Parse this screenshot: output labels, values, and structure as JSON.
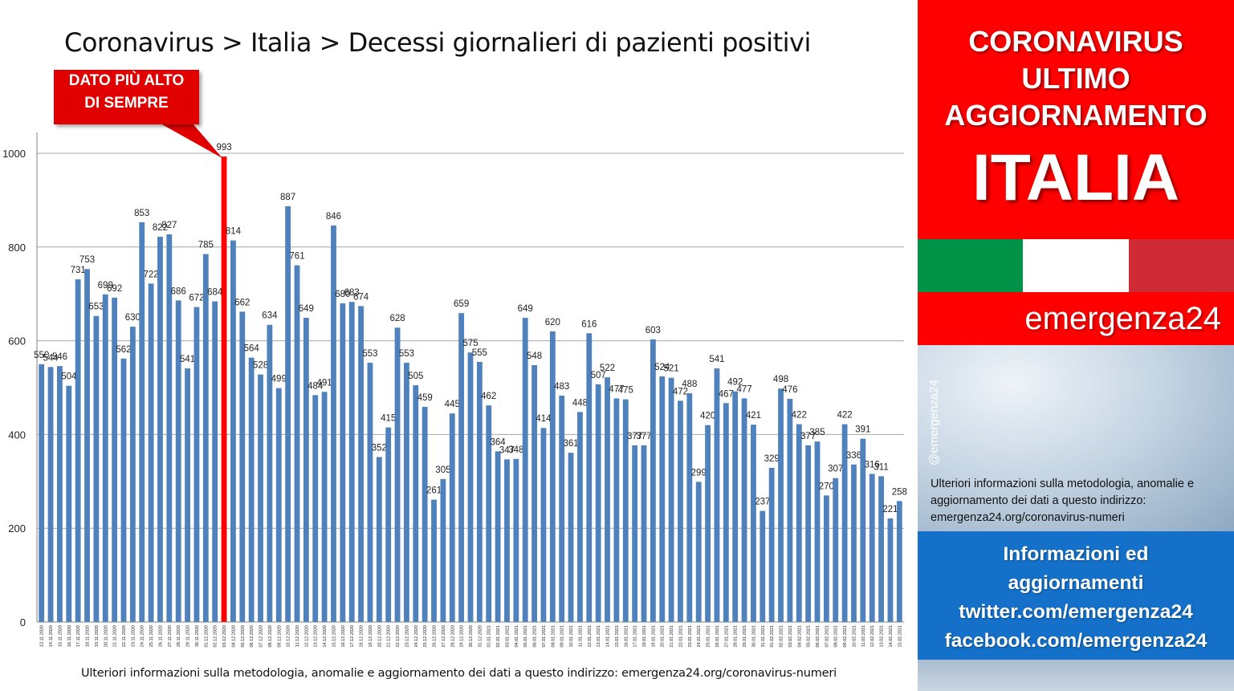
{
  "title": "Coronavirus > Italia > Decessi giornalieri di pazienti positivi",
  "callout": {
    "line1": "DATO PIÙ ALTO",
    "line2": "DI SEMPRE"
  },
  "footnote": "Ulteriori informazioni sulla metodologia, anomalie e aggiornamento dei dati a questo indirizzo: emergenza24.org/coronavirus-numeri",
  "side": {
    "line1": "CORONAVIRUS",
    "line2": "ULTIMO",
    "line3": "AGGIORNAMENTO",
    "big": "ITALIA",
    "brand": "emergenza24",
    "handle": "@emergenza24",
    "info": "Ulteriori informazioni sulla metodologia, anomalie e aggiornamento dei dati a questo indirizzo: emergenza24.org/coronavirus-numeri",
    "social1": "Informazioni ed",
    "social2": "aggiornamenti",
    "social3": "twitter.com/emergenza24",
    "social4": "facebook.com/emergenza24"
  },
  "colors": {
    "bar": "#4f81bd",
    "highlight_bar": "#ff0000",
    "flag_green": "#009246",
    "flag_white": "#ffffff",
    "flag_red": "#ce2b37",
    "side_red": "#ff0000",
    "side_blue": "#1470c8"
  },
  "chart_data": {
    "type": "bar",
    "title": "Coronavirus > Italia > Decessi giornalieri di pazienti positivi",
    "xlabel": "",
    "ylabel": "",
    "ylim": [
      0,
      1000
    ],
    "yticks": [
      0,
      200,
      400,
      600,
      800,
      1000
    ],
    "grid": true,
    "highlight_category": "03.12.2020",
    "categories": [
      "13.11.2020",
      "14.11.2020",
      "15.11.2020",
      "16.11.2020",
      "17.11.2020",
      "18.11.2020",
      "19.11.2020",
      "20.11.2020",
      "21.11.2020",
      "22.11.2020",
      "23.11.2020",
      "24.11.2020",
      "25.11.2020",
      "26.11.2020",
      "27.11.2020",
      "28.11.2020",
      "29.11.2020",
      "30.11.2020",
      "01.12.2020",
      "02.12.2020",
      "03.12.2020",
      "04.12.2020",
      "05.12.2020",
      "06.12.2020",
      "07.12.2020",
      "08.12.2020",
      "09.12.2020",
      "10.12.2020",
      "11.12.2020",
      "12.12.2020",
      "13.12.2020",
      "14.12.2020",
      "15.12.2020",
      "16.12.2020",
      "17.12.2020",
      "18.12.2020",
      "19.12.2020",
      "20.12.2020",
      "21.12.2020",
      "22.12.2020",
      "23.12.2020",
      "24.12.2020",
      "25.12.2020",
      "26.12.2020",
      "27.12.2020",
      "28.12.2020",
      "29.12.2020",
      "30.12.2020",
      "31.12.2020",
      "01.01.2021",
      "02.01.2021",
      "03.01.2021",
      "04.01.2021",
      "05.01.2021",
      "06.01.2021",
      "07.01.2021",
      "08.01.2021",
      "09.01.2021",
      "10.01.2021",
      "11.01.2021",
      "12.01.2021",
      "13.01.2021",
      "14.01.2021",
      "15.01.2021",
      "16.01.2021",
      "17.01.2021",
      "18.01.2021",
      "19.01.2021",
      "20.01.2021",
      "21.01.2021",
      "22.01.2021",
      "23.01.2021",
      "24.01.2021",
      "25.01.2021",
      "26.01.2021",
      "27.01.2021",
      "28.01.2021",
      "29.01.2021",
      "30.01.2021",
      "31.01.2021",
      "01.02.2021",
      "02.02.2021",
      "03.02.2021",
      "04.02.2021",
      "05.02.2021",
      "06.02.2021",
      "07.02.2021",
      "08.02.2021",
      "09.02.2021",
      "10.02.2021",
      "11.02.2021",
      "12.02.2021",
      "13.02.2021",
      "14.02.2021",
      "15.02.2021"
    ],
    "values": [
      550,
      544,
      546,
      504,
      731,
      753,
      653,
      699,
      692,
      562,
      630,
      853,
      722,
      822,
      827,
      686,
      541,
      672,
      785,
      684,
      993,
      814,
      662,
      564,
      528,
      634,
      499,
      887,
      761,
      649,
      484,
      491,
      846,
      680,
      683,
      674,
      553,
      352,
      415,
      628,
      553,
      505,
      459,
      261,
      305,
      445,
      659,
      575,
      555,
      462,
      364,
      347,
      348,
      649,
      548,
      414,
      620,
      483,
      361,
      448,
      616,
      507,
      522,
      477,
      475,
      377,
      377,
      603,
      524,
      521,
      472,
      488,
      299,
      420,
      541,
      467,
      492,
      477,
      421,
      237,
      329,
      498,
      476,
      422,
      377,
      385,
      270,
      307,
      422,
      336,
      391,
      316,
      311,
      221,
      258
    ]
  }
}
